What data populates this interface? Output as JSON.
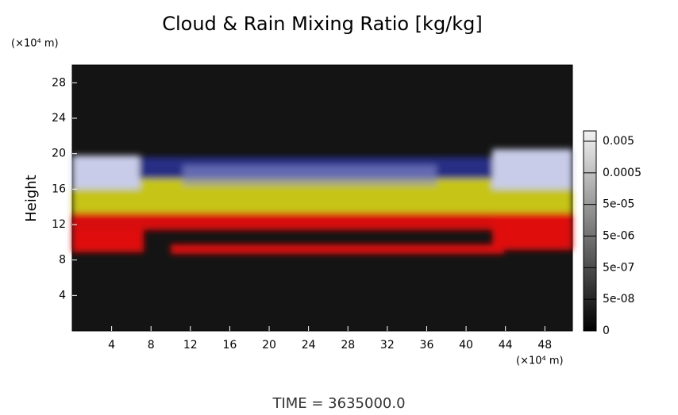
{
  "chart_data": {
    "type": "volume-render",
    "title": "Cloud & Rain Mixing Ratio [kg/kg]",
    "y_unit": "(×10⁴ m)",
    "ylabel": "Height",
    "x_unit": "(×10⁴ m)",
    "xlim": [
      0,
      50.8
    ],
    "xticks": [
      4,
      8,
      12,
      16,
      20,
      24,
      28,
      32,
      36,
      40,
      44,
      48
    ],
    "ylim": [
      0,
      30
    ],
    "yticks": [
      4,
      8,
      12,
      16,
      20,
      24,
      28
    ],
    "colorbar_ticks": [
      {
        "value": 0.005,
        "label": "0.005"
      },
      {
        "value": 0.0005,
        "label": "0.0005"
      },
      {
        "value": 5e-05,
        "label": "5e-05"
      },
      {
        "value": 5e-06,
        "label": "5e-06"
      },
      {
        "value": 5e-07,
        "label": "5e-07"
      },
      {
        "value": 5e-08,
        "label": "5e-08"
      },
      0
    ],
    "time_label": "TIME = 3635000.0"
  }
}
